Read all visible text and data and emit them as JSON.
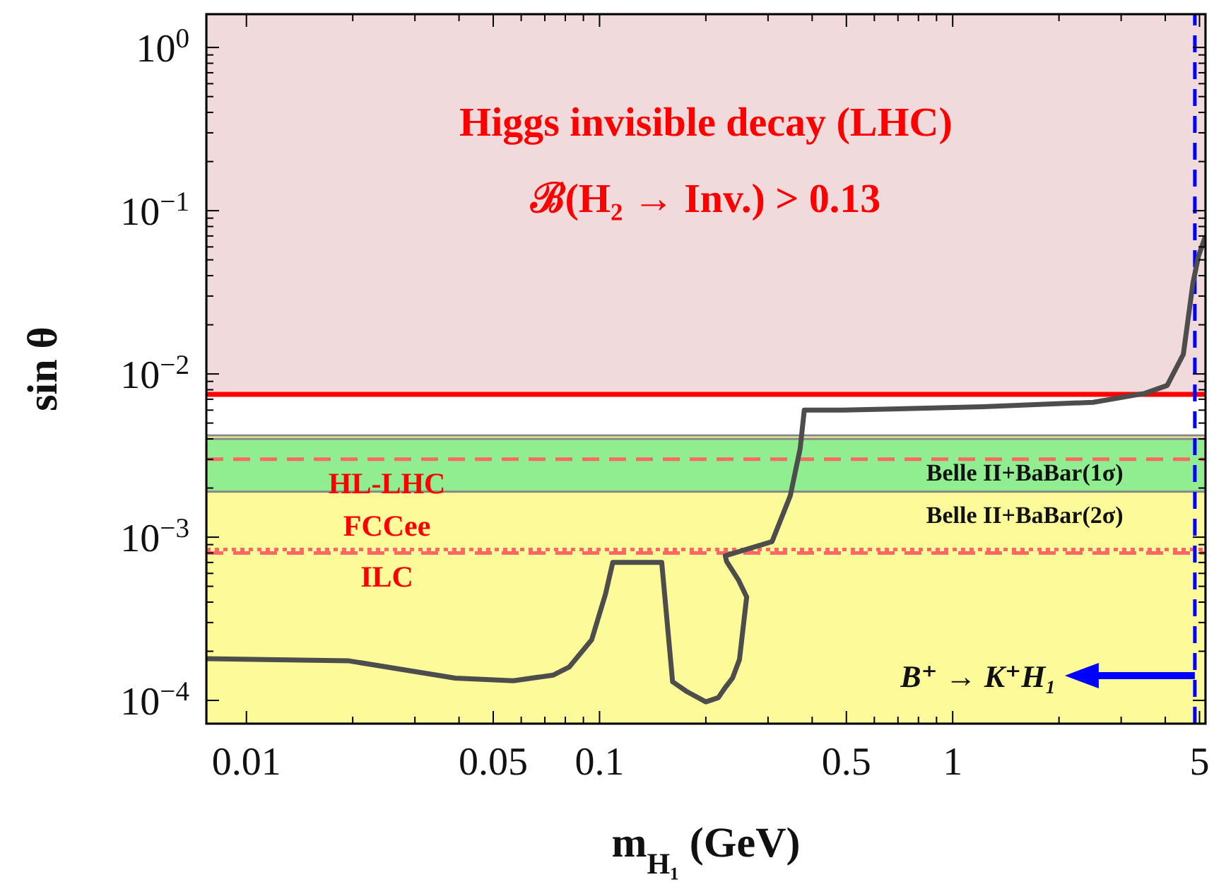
{
  "chart_data": {
    "type": "line",
    "xlabel": "m$_{H₁}$ (GeV)",
    "ylabel": "sin θ",
    "log": "xy",
    "grid": false,
    "marker": "none",
    "xlim": [
      0.0077,
      5.2
    ],
    "ylim": [
      7.2e-05,
      1.6
    ],
    "xticks": [
      0.01,
      {
        "value": 0.02,
        "label": null
      },
      {
        "value": 0.03,
        "label": null
      },
      {
        "value": 0.04,
        "label": null
      },
      0.05,
      {
        "value": 0.06,
        "label": null
      },
      {
        "value": 0.07,
        "label": null
      },
      {
        "value": 0.08,
        "label": null
      },
      {
        "value": 0.09,
        "label": null
      },
      0.1,
      {
        "value": 0.2,
        "label": null
      },
      {
        "value": 0.3,
        "label": null
      },
      {
        "value": 0.4,
        "label": null
      },
      0.5,
      {
        "value": 0.6,
        "label": null
      },
      {
        "value": 0.7,
        "label": null
      },
      {
        "value": 0.8,
        "label": null
      },
      {
        "value": 0.9,
        "label": null
      },
      1,
      {
        "value": 2,
        "label": null
      },
      {
        "value": 3,
        "label": null
      },
      {
        "value": 4,
        "label": null
      },
      5
    ],
    "yticks": [
      {
        "value": 0.0001,
        "label": "10$^{−4}$"
      },
      {
        "value": 0.0002,
        "label": null
      },
      {
        "value": 0.0003,
        "label": null
      },
      {
        "value": 0.0004,
        "label": null
      },
      {
        "value": 0.0005,
        "label": null
      },
      {
        "value": 0.0006,
        "label": null
      },
      {
        "value": 0.0007,
        "label": null
      },
      {
        "value": 0.0008,
        "label": null
      },
      {
        "value": 0.0009,
        "label": null
      },
      {
        "value": 0.001,
        "label": "10$^{−3}$"
      },
      {
        "value": 0.002,
        "label": null
      },
      {
        "value": 0.003,
        "label": null
      },
      {
        "value": 0.004,
        "label": null
      },
      {
        "value": 0.005,
        "label": null
      },
      {
        "value": 0.006,
        "label": null
      },
      {
        "value": 0.007,
        "label": null
      },
      {
        "value": 0.008,
        "label": null
      },
      {
        "value": 0.009,
        "label": null
      },
      {
        "value": 0.01,
        "label": "10$^{−2}$"
      },
      {
        "value": 0.02,
        "label": null
      },
      {
        "value": 0.03,
        "label": null
      },
      {
        "value": 0.04,
        "label": null
      },
      {
        "value": 0.05,
        "label": null
      },
      {
        "value": 0.06,
        "label": null
      },
      {
        "value": 0.07,
        "label": null
      },
      {
        "value": 0.08,
        "label": null
      },
      {
        "value": 0.09,
        "label": null
      },
      {
        "value": 0.1,
        "label": "10$^{−1}$"
      },
      {
        "value": 0.2,
        "label": null
      },
      {
        "value": 0.3,
        "label": null
      },
      {
        "value": 0.4,
        "label": null
      },
      {
        "value": 0.5,
        "label": null
      },
      {
        "value": 0.6,
        "label": null
      },
      {
        "value": 0.7,
        "label": null
      },
      {
        "value": 0.8,
        "label": null
      },
      {
        "value": 0.9,
        "label": null
      },
      {
        "value": 1,
        "label": "10$^{0}$"
      }
    ],
    "bands": [
      {
        "axis": "y",
        "from": 0.0075,
        "to": 1.6,
        "color": "#f0dadb",
        "label": "Higgs invisible decay (LHC)"
      },
      {
        "axis": "y",
        "from": 7.2e-05,
        "to": 0.0042,
        "color": "#fdfa9a",
        "label": "Belle II+BaBar(2σ)"
      },
      {
        "axis": "y",
        "from": 0.0019,
        "to": 0.004,
        "color": "#90ee90",
        "label": "Belle II+BaBar(1σ)"
      }
    ],
    "series": [
      {
        "color": "#4d4d4d",
        "x": [
          0.0077,
          0.0194,
          0.039,
          0.057,
          0.074,
          0.082,
          0.095,
          0.104,
          0.109,
          0.15,
          0.161,
          0.177,
          0.2,
          0.217,
          0.227,
          0.238,
          0.249,
          0.261,
          0.247,
          0.229,
          0.227,
          0.308,
          0.347,
          0.37,
          0.38,
          0.49,
          1.22,
          2.5,
          3.5,
          4.05,
          4.5,
          4.79,
          4.97,
          5.2
        ],
        "values": [
          0.00018,
          0.000175,
          0.000137,
          0.000132,
          0.000143,
          0.00016,
          0.000235,
          0.00045,
          0.0007,
          0.0007,
          0.00013,
          0.000113,
          9.8e-05,
          0.000104,
          0.00012,
          0.000137,
          0.000178,
          0.00043,
          0.00055,
          0.00071,
          0.00077,
          0.00094,
          0.0018,
          0.0035,
          0.006,
          0.006,
          0.0063,
          0.0067,
          0.0076,
          0.0085,
          0.0132,
          0.036,
          0.053,
          0.07
        ]
      }
    ],
    "ref_lines": [
      {
        "axis": "y",
        "value": 0.0075,
        "color": "#ff0000",
        "line_style": "solid"
      },
      {
        "axis": "y",
        "value": 0.003,
        "color": "#ff6666",
        "line_style": "dashed",
        "label": "HL-LHC"
      },
      {
        "axis": "y",
        "value": 0.00084,
        "color": "#ff6666",
        "line_style": "dotted",
        "label": "FCCee"
      },
      {
        "axis": "y",
        "value": 0.0008,
        "color": "#ff6666",
        "line_style": "dashed",
        "label": "ILC"
      },
      {
        "axis": "x",
        "value": 4.85,
        "color": "#0000ff",
        "line_style": "dashed",
        "label": "B⁺ → K⁺H₁"
      }
    ],
    "annotations": [
      "ℬ(H₂ → Inv.) > 0.13"
    ]
  }
}
